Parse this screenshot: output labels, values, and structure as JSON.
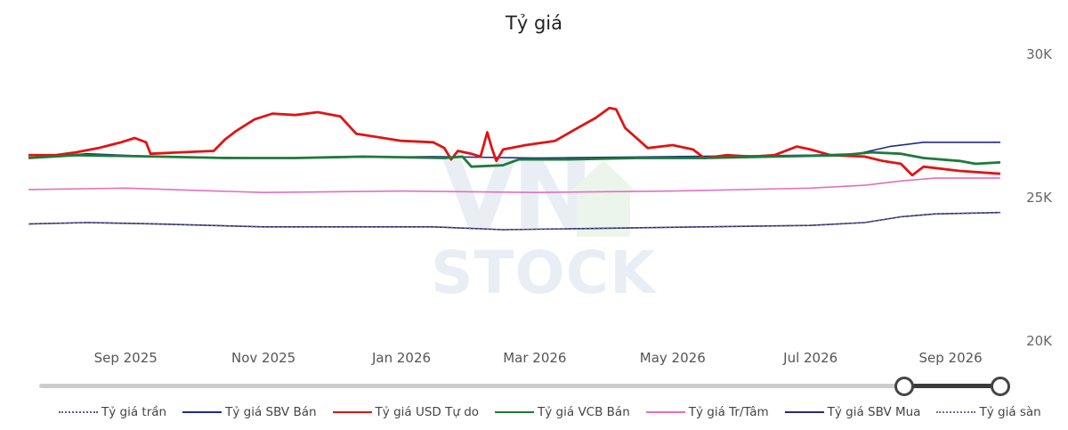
{
  "title": "Tỷ giá",
  "chart_data": {
    "type": "line",
    "title": "Tỷ giá",
    "xlabel": "",
    "ylabel": "",
    "ylim": [
      20000,
      30000
    ],
    "y_ticks": [
      {
        "value": 30000,
        "label": "30K"
      },
      {
        "value": 25000,
        "label": "25K"
      },
      {
        "value": 20000,
        "label": "20K"
      }
    ],
    "x_ticks": [
      {
        "date": "2025-09-01",
        "label": "Sep 2025"
      },
      {
        "date": "2025-11-01",
        "label": "Nov 2025"
      },
      {
        "date": "2026-01-01",
        "label": "Jan 2026"
      },
      {
        "date": "2026-03-01",
        "label": "Mar 2026"
      },
      {
        "date": "2026-05-01",
        "label": "May 2026"
      },
      {
        "date": "2026-07-01",
        "label": "Jul 2026"
      },
      {
        "date": "2026-09-01",
        "label": "Sep 2026"
      }
    ],
    "xlim": [
      "2025-07-20",
      "2026-09-23"
    ],
    "grid": false,
    "legend_position": "bottom",
    "series": [
      {
        "name": "Tỷ giá trần",
        "color": "#5b5b8a",
        "dash": true,
        "points": [
          [
            "2025-07-20",
            24050
          ],
          [
            "2025-08-15",
            24100
          ],
          [
            "2025-09-15",
            24050
          ],
          [
            "2025-11-01",
            23950
          ],
          [
            "2026-01-15",
            23950
          ],
          [
            "2026-02-15",
            23850
          ],
          [
            "2026-04-01",
            23900
          ],
          [
            "2026-05-15",
            23950
          ],
          [
            "2026-07-01",
            24000
          ],
          [
            "2026-07-25",
            24100
          ],
          [
            "2026-08-10",
            24300
          ],
          [
            "2026-08-25",
            24400
          ],
          [
            "2026-09-23",
            24450
          ]
        ]
      },
      {
        "name": "Tỷ giá SBV Bán",
        "color": "#1f2a8a",
        "dash": false,
        "points": [
          [
            "2025-07-20",
            26350
          ],
          [
            "2025-08-15",
            26500
          ],
          [
            "2025-09-15",
            26400
          ],
          [
            "2025-11-01",
            26350
          ],
          [
            "2026-01-15",
            26400
          ],
          [
            "2026-03-01",
            26350
          ],
          [
            "2026-05-01",
            26400
          ],
          [
            "2026-07-01",
            26450
          ],
          [
            "2026-07-22",
            26500
          ],
          [
            "2026-08-05",
            26750
          ],
          [
            "2026-08-20",
            26900
          ],
          [
            "2026-09-23",
            26900
          ]
        ]
      },
      {
        "name": "Tỷ giá USD Tự do",
        "color": "#e01414",
        "dash": false,
        "points": [
          [
            "2025-07-20",
            26450
          ],
          [
            "2025-08-01",
            26450
          ],
          [
            "2025-08-10",
            26550
          ],
          [
            "2025-08-20",
            26700
          ],
          [
            "2025-08-30",
            26900
          ],
          [
            "2025-09-05",
            27050
          ],
          [
            "2025-09-10",
            26900
          ],
          [
            "2025-09-12",
            26500
          ],
          [
            "2025-09-25",
            26550
          ],
          [
            "2025-10-10",
            26600
          ],
          [
            "2025-10-15",
            27000
          ],
          [
            "2025-10-20",
            27300
          ],
          [
            "2025-10-28",
            27700
          ],
          [
            "2025-11-05",
            27900
          ],
          [
            "2025-11-15",
            27850
          ],
          [
            "2025-11-25",
            27950
          ],
          [
            "2025-12-05",
            27800
          ],
          [
            "2025-12-12",
            27200
          ],
          [
            "2025-12-20",
            27100
          ],
          [
            "2026-01-01",
            26950
          ],
          [
            "2026-01-15",
            26900
          ],
          [
            "2026-01-20",
            26700
          ],
          [
            "2026-01-23",
            26300
          ],
          [
            "2026-01-26",
            26600
          ],
          [
            "2026-02-01",
            26500
          ],
          [
            "2026-02-05",
            26400
          ],
          [
            "2026-02-08",
            27250
          ],
          [
            "2026-02-10",
            26700
          ],
          [
            "2026-02-12",
            26250
          ],
          [
            "2026-02-15",
            26650
          ],
          [
            "2026-02-25",
            26800
          ],
          [
            "2026-03-10",
            26950
          ],
          [
            "2026-03-20",
            27400
          ],
          [
            "2026-03-28",
            27750
          ],
          [
            "2026-04-03",
            28100
          ],
          [
            "2026-04-06",
            28050
          ],
          [
            "2026-04-10",
            27400
          ],
          [
            "2026-04-15",
            27050
          ],
          [
            "2026-04-20",
            26700
          ],
          [
            "2026-05-01",
            26800
          ],
          [
            "2026-05-10",
            26650
          ],
          [
            "2026-05-15",
            26350
          ],
          [
            "2026-05-25",
            26450
          ],
          [
            "2026-06-05",
            26400
          ],
          [
            "2026-06-15",
            26450
          ],
          [
            "2026-06-25",
            26750
          ],
          [
            "2026-07-01",
            26650
          ],
          [
            "2026-07-10",
            26450
          ],
          [
            "2026-07-25",
            26400
          ],
          [
            "2026-08-02",
            26250
          ],
          [
            "2026-08-10",
            26150
          ],
          [
            "2026-08-15",
            25750
          ],
          [
            "2026-08-20",
            26050
          ],
          [
            "2026-09-05",
            25900
          ],
          [
            "2026-09-23",
            25800
          ]
        ]
      },
      {
        "name": "Tỷ giá VCB Bán",
        "color": "#1e7a3a",
        "dash": false,
        "points": [
          [
            "2025-07-20",
            26350
          ],
          [
            "2025-08-10",
            26450
          ],
          [
            "2025-09-15",
            26400
          ],
          [
            "2025-10-15",
            26350
          ],
          [
            "2025-11-15",
            26350
          ],
          [
            "2025-12-15",
            26400
          ],
          [
            "2026-01-20",
            26350
          ],
          [
            "2026-01-28",
            26400
          ],
          [
            "2026-02-01",
            26050
          ],
          [
            "2026-02-15",
            26100
          ],
          [
            "2026-02-22",
            26300
          ],
          [
            "2026-03-15",
            26300
          ],
          [
            "2026-04-15",
            26350
          ],
          [
            "2026-05-15",
            26350
          ],
          [
            "2026-06-15",
            26400
          ],
          [
            "2026-07-15",
            26450
          ],
          [
            "2026-07-28",
            26550
          ],
          [
            "2026-08-10",
            26500
          ],
          [
            "2026-08-20",
            26350
          ],
          [
            "2026-09-05",
            26250
          ],
          [
            "2026-09-12",
            26150
          ],
          [
            "2026-09-23",
            26200
          ]
        ]
      },
      {
        "name": "Tỷ giá Tr/Tâm",
        "color": "#e36fbd",
        "dash": false,
        "points": [
          [
            "2025-07-20",
            25250
          ],
          [
            "2025-09-01",
            25300
          ],
          [
            "2025-11-01",
            25150
          ],
          [
            "2026-01-01",
            25200
          ],
          [
            "2026-03-01",
            25150
          ],
          [
            "2026-05-01",
            25200
          ],
          [
            "2026-07-01",
            25300
          ],
          [
            "2026-07-25",
            25400
          ],
          [
            "2026-08-10",
            25550
          ],
          [
            "2026-08-25",
            25650
          ],
          [
            "2026-09-23",
            25650
          ]
        ]
      },
      {
        "name": "Tỷ giá SBV Mua",
        "color": "#2e2a6e",
        "dash": false,
        "points": [
          [
            "2025-07-20",
            24050
          ],
          [
            "2025-08-15",
            24100
          ],
          [
            "2025-09-15",
            24050
          ],
          [
            "2025-11-01",
            23950
          ],
          [
            "2026-01-15",
            23950
          ],
          [
            "2026-02-15",
            23850
          ],
          [
            "2026-04-01",
            23900
          ],
          [
            "2026-05-15",
            23950
          ],
          [
            "2026-07-01",
            24000
          ],
          [
            "2026-07-25",
            24100
          ],
          [
            "2026-08-10",
            24300
          ],
          [
            "2026-08-25",
            24400
          ],
          [
            "2026-09-23",
            24450
          ]
        ]
      },
      {
        "name": "Tỷ giá sàn",
        "color": "#6d6d9a",
        "dash": true,
        "points": [
          [
            "2025-07-20",
            24050
          ],
          [
            "2025-08-15",
            24100
          ],
          [
            "2025-09-15",
            24050
          ],
          [
            "2025-11-01",
            23950
          ],
          [
            "2026-01-15",
            23950
          ],
          [
            "2026-02-15",
            23850
          ],
          [
            "2026-04-01",
            23900
          ],
          [
            "2026-05-15",
            23950
          ],
          [
            "2026-07-01",
            24000
          ],
          [
            "2026-07-25",
            24100
          ],
          [
            "2026-08-10",
            24300
          ],
          [
            "2026-08-25",
            24400
          ],
          [
            "2026-09-23",
            24450
          ]
        ]
      }
    ]
  },
  "slider": {
    "start_fraction": 0.9,
    "end_fraction": 1.0
  },
  "legend": [
    {
      "label": "Tỷ giá trần",
      "color": "#5b5b8a",
      "dash": true
    },
    {
      "label": "Tỷ giá SBV Bán",
      "color": "#1f2a8a",
      "dash": false
    },
    {
      "label": "Tỷ giá USD Tự do",
      "color": "#e01414",
      "dash": false
    },
    {
      "label": "Tỷ giá VCB Bán",
      "color": "#1e7a3a",
      "dash": false
    },
    {
      "label": "Tỷ giá Tr/Tâm",
      "color": "#e36fbd",
      "dash": false
    },
    {
      "label": "Tỷ giá SBV Mua",
      "color": "#2e2a6e",
      "dash": false
    },
    {
      "label": "Tỷ giá sàn",
      "color": "#6d6d9a",
      "dash": true
    }
  ],
  "watermark": {
    "logo": "VN",
    "text": "STOCK"
  }
}
